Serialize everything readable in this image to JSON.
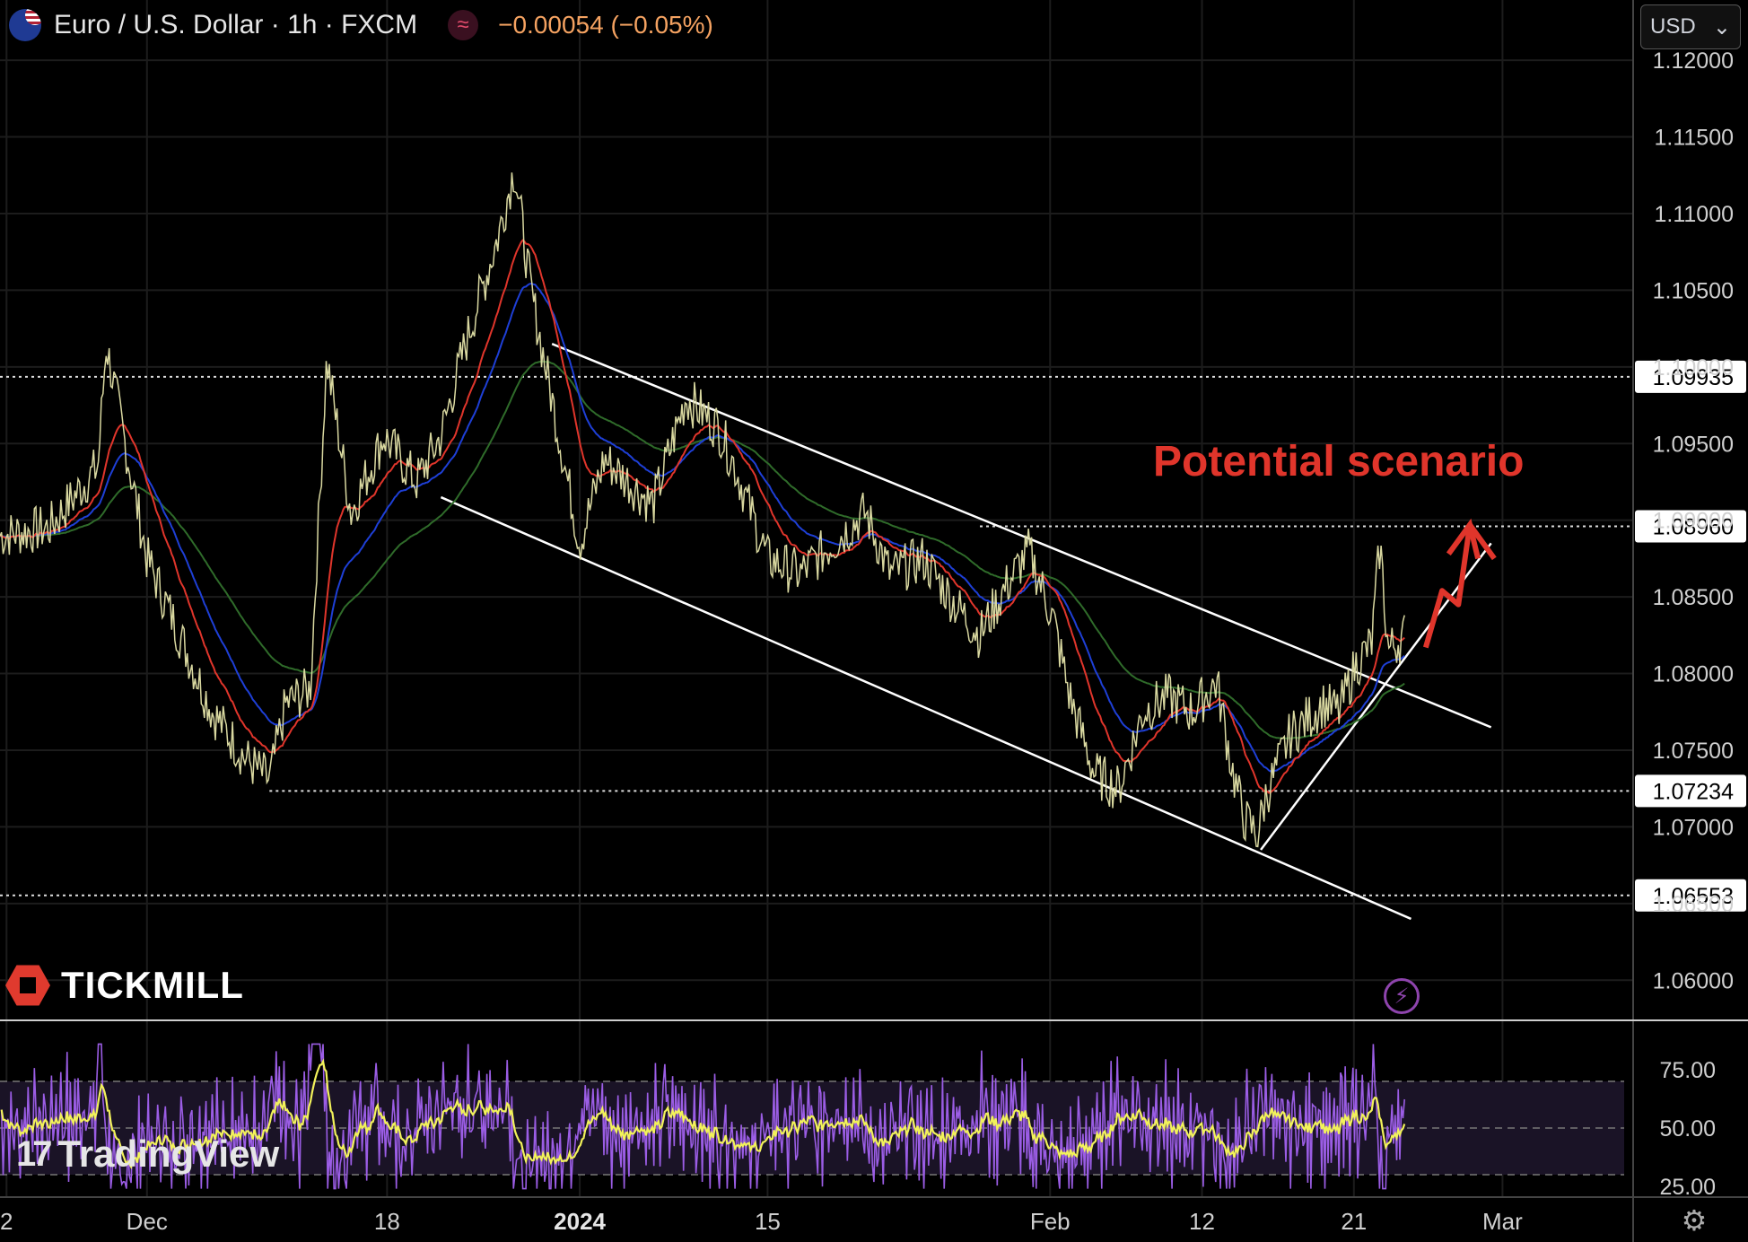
{
  "header": {
    "title": "Euro / U.S. Dollar · 1h · FXCM",
    "change": "−0.00054 (−0.05%)",
    "indicator_icon": "wave-icon"
  },
  "currency_select": {
    "value": "USD",
    "icon": "chevron-down-icon"
  },
  "brand": {
    "broker": "TICKMILL",
    "platform": "TradingView"
  },
  "annotation": {
    "text": "Potential scenario",
    "color": "#e0352b"
  },
  "chart_data": {
    "type": "line",
    "symbol": "EURUSD",
    "interval": "1h",
    "x_ticks": [
      "2",
      "Dec",
      "18",
      "2024",
      "15",
      "Feb",
      "12",
      "21",
      "Mar"
    ],
    "price_axis": {
      "ticks": [
        "1.12000",
        "1.11500",
        "1.11000",
        "1.10500",
        "1.10000",
        "1.09500",
        "1.09000",
        "1.08500",
        "1.08000",
        "1.07500",
        "1.07000",
        "1.06500",
        "1.06000"
      ],
      "ylim": [
        1.0575,
        1.121
      ]
    },
    "levels": [
      {
        "label": "1.09935",
        "value": 1.09935
      },
      {
        "label": "1.08960",
        "value": 1.0896
      },
      {
        "label": "1.07234",
        "value": 1.07234
      },
      {
        "label": "1.06553",
        "value": 1.06553
      }
    ],
    "price_points": [
      [
        0,
        1.089
      ],
      [
        0.03,
        1.0895
      ],
      [
        0.06,
        1.0935
      ],
      [
        0.065,
        1.1015
      ],
      [
        0.09,
        1.0875
      ],
      [
        0.11,
        1.0825
      ],
      [
        0.13,
        1.0775
      ],
      [
        0.15,
        1.0745
      ],
      [
        0.165,
        1.073
      ],
      [
        0.175,
        1.078
      ],
      [
        0.19,
        1.079
      ],
      [
        0.2,
        1.1005
      ],
      [
        0.215,
        1.0905
      ],
      [
        0.235,
        1.0955
      ],
      [
        0.255,
        1.0925
      ],
      [
        0.27,
        1.0955
      ],
      [
        0.285,
        1.1015
      ],
      [
        0.305,
        1.1085
      ],
      [
        0.315,
        1.113
      ],
      [
        0.325,
        1.105
      ],
      [
        0.345,
        1.094
      ],
      [
        0.355,
        1.0885
      ],
      [
        0.37,
        1.094
      ],
      [
        0.385,
        1.0925
      ],
      [
        0.4,
        1.091
      ],
      [
        0.42,
        1.098
      ],
      [
        0.44,
        1.096
      ],
      [
        0.45,
        1.0935
      ],
      [
        0.47,
        1.0875
      ],
      [
        0.49,
        1.0865
      ],
      [
        0.51,
        1.0885
      ],
      [
        0.53,
        1.0905
      ],
      [
        0.545,
        1.0865
      ],
      [
        0.565,
        1.0875
      ],
      [
        0.585,
        1.0845
      ],
      [
        0.6,
        1.0825
      ],
      [
        0.615,
        1.0855
      ],
      [
        0.63,
        1.088
      ],
      [
        0.645,
        1.0835
      ],
      [
        0.655,
        1.0785
      ],
      [
        0.67,
        1.0735
      ],
      [
        0.685,
        1.0725
      ],
      [
        0.7,
        1.0775
      ],
      [
        0.715,
        1.0785
      ],
      [
        0.73,
        1.0775
      ],
      [
        0.745,
        1.0795
      ],
      [
        0.755,
        1.0735
      ],
      [
        0.762,
        1.0705
      ],
      [
        0.77,
        1.0695
      ],
      [
        0.775,
        1.072
      ],
      [
        0.79,
        1.076
      ],
      [
        0.81,
        1.078
      ],
      [
        0.82,
        1.0775
      ],
      [
        0.83,
        1.0805
      ],
      [
        0.84,
        1.082
      ],
      [
        0.845,
        1.0885
      ],
      [
        0.85,
        1.0815
      ],
      [
        0.86,
        1.0825
      ]
    ],
    "rsi_axis": {
      "ticks": [
        "75.00",
        "50.00",
        "25.00"
      ],
      "ylim": [
        20,
        95
      ],
      "band": [
        30,
        70
      ]
    },
    "colors": {
      "price": "#d9d8a0",
      "ema_fast": "#e0352b",
      "ema_mid": "#1e3fd6",
      "ema_slow": "#2f6b2a",
      "rsi": "#9b5de5",
      "rsi_smooth": "#f2f25a",
      "trendline": "#ffffff",
      "arrow": "#e0352b"
    }
  }
}
